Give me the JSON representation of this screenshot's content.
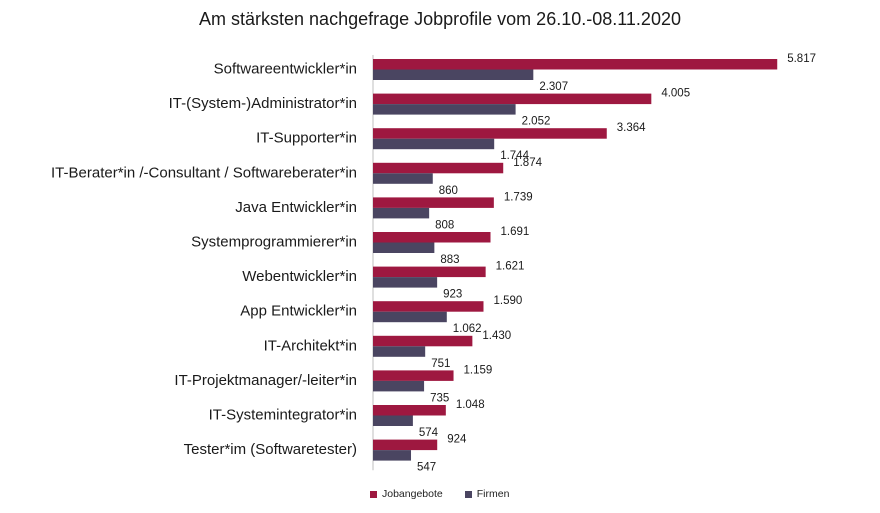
{
  "colors": {
    "jobangebote": "#9e1840",
    "firmen": "#4a4561",
    "axis": "#bfbfbf"
  },
  "chart_data": {
    "type": "bar",
    "orientation": "horizontal",
    "title": "Am stärksten nachgefrage Jobprofile vom 26.10.-08.11.2020",
    "xlabel": "",
    "ylabel": "",
    "xlim": [
      0,
      5900
    ],
    "grid": false,
    "legend_position": "bottom",
    "categories": [
      "Softwareentwickler*in",
      "IT-(System-)Administrator*in",
      "IT-Supporter*in",
      "IT-Berater*in /-Consultant / Softwareberater*in",
      "Java Entwickler*in",
      "Systemprogrammierer*in",
      "Webentwickler*in",
      "App Entwickler*in",
      "IT-Architekt*in",
      "IT-Projektmanager/-leiter*in",
      "IT-Systemintegrator*in",
      "Tester*im (Softwaretester)"
    ],
    "series": [
      {
        "name": "Jobangebote",
        "values": [
          5817,
          4005,
          3364,
          1874,
          1739,
          1691,
          1621,
          1590,
          1430,
          1159,
          1048,
          924
        ],
        "labels": [
          "5.817",
          "4.005",
          "3.364",
          "1.874",
          "1.739",
          "1.691",
          "1.621",
          "1.590",
          "1.430",
          "1.159",
          "1.048",
          "924"
        ]
      },
      {
        "name": "Firmen",
        "values": [
          2307,
          2052,
          1744,
          860,
          808,
          883,
          923,
          1062,
          751,
          735,
          574,
          547
        ],
        "labels": [
          "2.307",
          "2.052",
          "1.744",
          "860",
          "808",
          "883",
          "923",
          "1.062",
          "751",
          "735",
          "574",
          "547"
        ]
      }
    ]
  }
}
